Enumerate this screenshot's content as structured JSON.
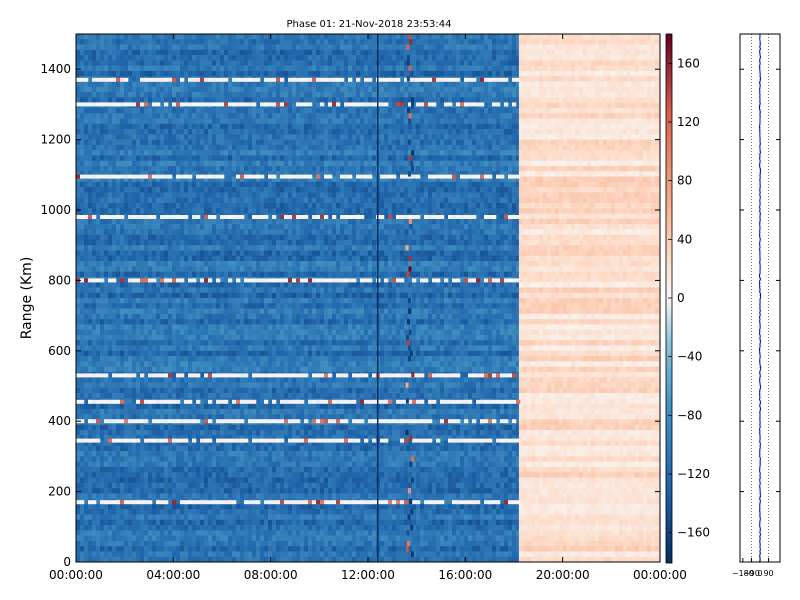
{
  "chart_data": [
    {
      "type": "heatmap",
      "title": "Phase 01: 21-Nov-2018 23:53:44",
      "xlabel": "",
      "ylabel": "Range (Km)",
      "x_ticks": [
        "00:00:00",
        "04:00:00",
        "08:00:00",
        "12:00:00",
        "16:00:00",
        "20:00:00",
        "00:00:00"
      ],
      "x_tick_hours": [
        0,
        4,
        8,
        12,
        16,
        20,
        24
      ],
      "xlim_hours": [
        0,
        24
      ],
      "y_ticks": [
        0,
        200,
        400,
        600,
        800,
        1000,
        1200,
        1400
      ],
      "ylim": [
        0,
        1500
      ],
      "colormap": "RdBu_r",
      "colorbar": {
        "ticks": [
          160,
          120,
          80,
          40,
          0,
          -40,
          -80,
          -120,
          -160
        ],
        "tick_labels": [
          "160",
          "120",
          "80",
          "40",
          "0",
          "−40",
          "−80",
          "−120",
          "−160"
        ],
        "range": [
          -180,
          180
        ]
      },
      "regions": [
        {
          "hours": [
            0,
            18.2
          ],
          "phase_deg": -110
        },
        {
          "hours": [
            18.2,
            24
          ],
          "phase_deg": 25
        }
      ],
      "cursor_hour": 12.4,
      "noisy_column_hour": 13.7,
      "white_bands_km": [
        170,
        345,
        400,
        455,
        530,
        800,
        980,
        1095,
        1300,
        1370
      ]
    },
    {
      "type": "line",
      "x_ticks": [
        "−180",
        "−90",
        "0",
        "90"
      ],
      "x_tick_values": [
        -180,
        -90,
        0,
        90
      ],
      "xlim": [
        -210,
        210
      ],
      "ylim": [
        0,
        1500
      ],
      "gridlines_x": [
        -90,
        0,
        90
      ],
      "series": [
        {
          "color": "#0000cc",
          "approx_mean_deg": 0
        }
      ]
    }
  ]
}
